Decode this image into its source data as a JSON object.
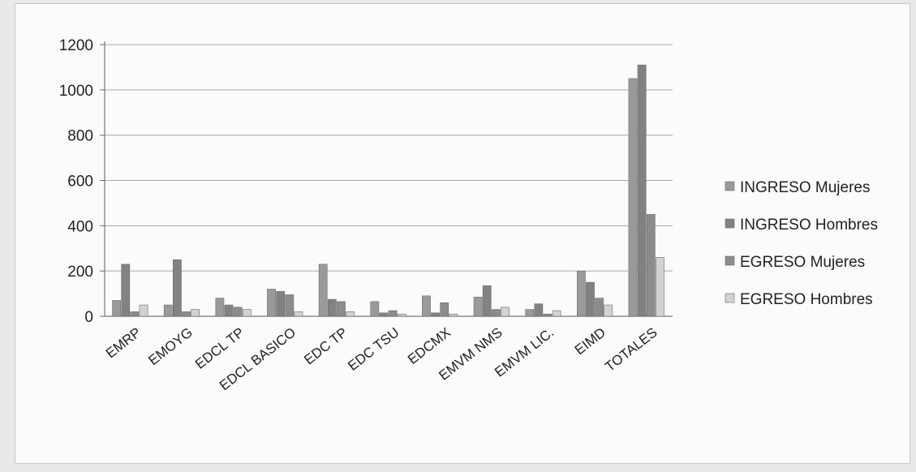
{
  "chart_data": {
    "type": "bar",
    "title": "",
    "xlabel": "",
    "ylabel": "",
    "ylim": [
      0,
      1200
    ],
    "yticks": [
      0,
      200,
      400,
      600,
      800,
      1000,
      1200
    ],
    "grid": true,
    "legend_position": "right",
    "categories": [
      "EMRP",
      "EMOYG",
      "EDCL TP",
      "EDCL BASICO",
      "EDC TP",
      "EDC TSU",
      "EDCMX",
      "EMVM NMS",
      "EMVM LIC.",
      "EIMD",
      "TOTALES"
    ],
    "series": [
      {
        "name": "INGRESO Mujeres",
        "color": "#9a9a9a",
        "values": [
          70,
          50,
          80,
          120,
          230,
          65,
          90,
          85,
          30,
          200,
          1050
        ]
      },
      {
        "name": "INGRESO Hombres",
        "color": "#828282",
        "values": [
          230,
          250,
          50,
          110,
          75,
          15,
          15,
          135,
          55,
          150,
          1110
        ]
      },
      {
        "name": "EGRESO Mujeres",
        "color": "#8c8c8c",
        "values": [
          20,
          20,
          40,
          95,
          65,
          25,
          60,
          30,
          10,
          80,
          450
        ]
      },
      {
        "name": "EGRESO Hombres",
        "color": "#d2d2d2",
        "values": [
          50,
          30,
          30,
          20,
          20,
          10,
          10,
          40,
          25,
          50,
          260
        ]
      }
    ]
  }
}
